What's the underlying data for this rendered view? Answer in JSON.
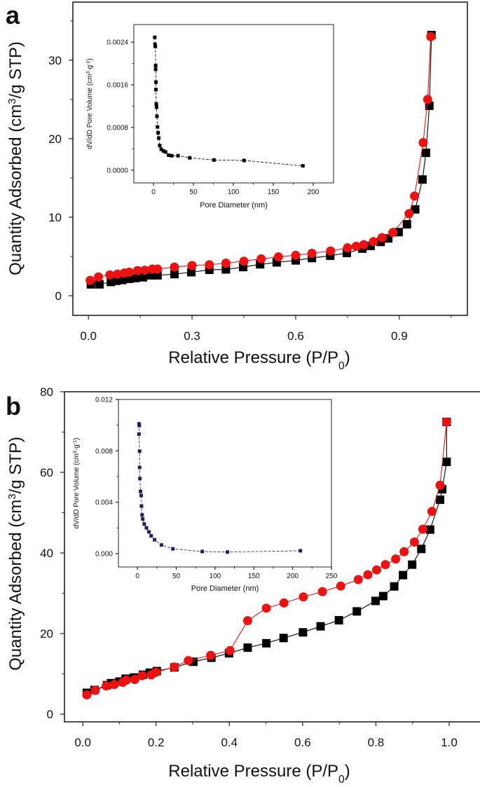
{
  "chart_data": [
    {
      "panel_label": "a",
      "type": "scatter",
      "xlabel": "Relative Pressure (P/P0)",
      "ylabel": "Quantity Adsorbed (cm3/g STP)",
      "xlim": [
        -0.045,
        1.097
      ],
      "ylim": [
        -2.5,
        37.4
      ],
      "xticks": [
        0.0,
        0.3,
        0.6,
        0.9
      ],
      "xtick_labels": [
        "0.0",
        "0.3",
        "0.6",
        "0.9"
      ],
      "yticks": [
        0,
        10,
        20,
        30
      ],
      "ytick_labels": [
        "0",
        "10",
        "20",
        "30"
      ],
      "xminor": [
        0.15,
        0.45,
        0.75,
        1.05
      ],
      "yminor": [
        5,
        15,
        25,
        35
      ],
      "grid": false,
      "series": [
        {
          "marker": "square",
          "color": "#000000",
          "x": [
            0.007,
            0.032,
            0.065,
            0.081,
            0.098,
            0.118,
            0.136,
            0.158,
            0.181,
            0.2,
            0.249,
            0.298,
            0.35,
            0.398,
            0.448,
            0.497,
            0.545,
            0.6,
            0.647,
            0.7,
            0.748,
            0.793,
            0.817,
            0.846,
            0.868,
            0.898,
            0.922,
            0.946,
            0.967,
            0.977,
            0.987,
            0.993
          ],
          "y": [
            1.45,
            1.45,
            1.75,
            1.9,
            2.0,
            2.15,
            2.25,
            2.35,
            2.6,
            2.6,
            2.75,
            3.0,
            3.3,
            3.35,
            3.65,
            4.0,
            4.25,
            4.5,
            4.8,
            5.1,
            5.45,
            6.0,
            6.35,
            6.85,
            7.3,
            8.1,
            9.1,
            11.0,
            14.8,
            18.2,
            24.2,
            33.2
          ]
        },
        {
          "marker": "circle",
          "color": "#ee1111",
          "x": [
            0.005,
            0.029,
            0.062,
            0.084,
            0.104,
            0.118,
            0.142,
            0.163,
            0.185,
            0.2,
            0.249,
            0.3,
            0.35,
            0.398,
            0.45,
            0.5,
            0.55,
            0.6,
            0.647,
            0.701,
            0.75,
            0.775,
            0.797,
            0.825,
            0.85,
            0.881,
            0.928,
            0.944,
            0.969,
            0.982,
            0.991
          ],
          "y": [
            1.95,
            2.4,
            2.65,
            2.75,
            2.9,
            3.0,
            3.2,
            3.25,
            3.4,
            3.4,
            3.65,
            3.85,
            3.95,
            4.15,
            4.4,
            4.7,
            4.95,
            5.15,
            5.4,
            5.7,
            6.1,
            6.3,
            6.5,
            6.9,
            7.4,
            8.05,
            10.45,
            12.7,
            19.5,
            25.0,
            33.0
          ]
        }
      ],
      "inset": {
        "type": "line",
        "xlabel": "Pore Diameter (nm)",
        "ylabel": "dV/dD Pore Volume (cm3·g-1)",
        "xlim": [
          -24.6,
          225.4
        ],
        "ylim": [
          -0.00024,
          0.00273
        ],
        "xticks": [
          0,
          50,
          100,
          150,
          200
        ],
        "xtick_labels": [
          "0",
          "50",
          "100",
          "150",
          "200"
        ],
        "yticks": [
          0,
          0.0008,
          0.0016,
          0.0024
        ],
        "ytick_labels": [
          "0.0000",
          "0.0008",
          "0.0016",
          "0.0024"
        ],
        "xminor": [
          25,
          75,
          125,
          175
        ],
        "yminor": [
          0.0004,
          0.0012,
          0.002
        ],
        "series": [
          {
            "marker": "square",
            "color": "#000000",
            "x": [
              1.6,
              1.9,
              2.3,
              2.7,
              2.7,
              3.1,
              3.1,
              3.5,
              3.9,
              4.3,
              5.0,
              5.8,
              6.6,
              7.8,
              9.7,
              12.4,
              15.1,
              19.0,
              22.9,
              30.7,
              45.4,
              75.7,
              113.4,
              187
            ],
            "y": [
              0.00249,
              0.00236,
              0.00232,
              0.00196,
              0.00189,
              0.00165,
              0.00151,
              0.00124,
              0.00118,
              0.00101,
              0.00081,
              0.0007,
              0.0006,
              0.00046,
              0.00039,
              0.00036,
              0.00034,
              0.00028,
              0.00027,
              0.00027,
              0.00023,
              0.00019,
              0.00018,
              8e-05
            ]
          }
        ]
      }
    },
    {
      "panel_label": "b",
      "type": "scatter",
      "xlabel": "Relative Pressure (P/P0)",
      "ylabel": "Quantity Adsorbed (cm3/g STP)",
      "xlim": [
        -0.05,
        1.0975
      ],
      "ylim": [
        -1.9,
        80
      ],
      "xticks": [
        0.0,
        0.2,
        0.4,
        0.6,
        0.8,
        1.0
      ],
      "xtick_labels": [
        "0.0",
        "0.2",
        "0.4",
        "0.6",
        "0.8",
        "1.0"
      ],
      "yticks": [
        0,
        20,
        40,
        60,
        80
      ],
      "ytick_labels": [
        "0",
        "20",
        "40",
        "60",
        "80"
      ],
      "xminor": [
        0.1,
        0.3,
        0.5,
        0.7,
        0.9,
        1.1
      ],
      "yminor": [
        10,
        30,
        50,
        70
      ],
      "grid": false,
      "series": [
        {
          "marker": "square",
          "color": "#000000",
          "x": [
            0.011,
            0.032,
            0.066,
            0.077,
            0.1,
            0.117,
            0.14,
            0.164,
            0.183,
            0.202,
            0.25,
            0.302,
            0.351,
            0.399,
            0.45,
            0.501,
            0.548,
            0.601,
            0.649,
            0.699,
            0.748,
            0.799,
            0.82,
            0.85,
            0.874,
            0.899,
            0.924,
            0.948,
            0.975,
            0.981,
            0.993,
            0.993
          ],
          "y": [
            5.3,
            6.0,
            7.2,
            7.7,
            8.1,
            8.8,
            9.1,
            9.8,
            10.3,
            10.7,
            11.6,
            13.0,
            14.0,
            15.1,
            16.5,
            17.6,
            18.9,
            20.3,
            21.8,
            23.3,
            25.5,
            28.1,
            29.3,
            31.7,
            34.5,
            37.1,
            41.0,
            45.8,
            53.2,
            55.8,
            62.6,
            72.5
          ]
        },
        {
          "marker": "circle",
          "color": "#ee1111",
          "x": [
            0.011,
            0.034,
            0.064,
            0.086,
            0.109,
            0.119,
            0.142,
            0.162,
            0.187,
            0.2,
            0.25,
            0.288,
            0.349,
            0.402,
            0.45,
            0.501,
            0.549,
            0.602,
            0.654,
            0.704,
            0.752,
            0.778,
            0.802,
            0.826,
            0.854,
            0.877,
            0.905,
            0.928,
            0.953,
            0.975,
            0.993
          ],
          "y": [
            4.8,
            5.9,
            7.0,
            7.35,
            7.9,
            8.45,
            8.6,
            9.55,
            9.75,
            10.4,
            11.7,
            13.3,
            14.6,
            15.8,
            23.2,
            26.3,
            27.6,
            29.1,
            30.4,
            31.8,
            33.4,
            34.6,
            35.8,
            37.1,
            38.5,
            40.3,
            42.7,
            45.9,
            50.3,
            56.8,
            72.5
          ]
        }
      ],
      "inset": {
        "type": "line",
        "xlabel": "Pore Diameter (nm)",
        "ylabel": "dV/dD Pore Volume (cm3·g-1)",
        "xlim": [
          -24.5,
          250
        ],
        "ylim": [
          -0.00104,
          0.012
        ],
        "xticks": [
          0,
          50,
          100,
          150,
          200,
          250
        ],
        "xtick_labels": [
          "0",
          "50",
          "100",
          "150",
          "200",
          "250"
        ],
        "yticks": [
          0,
          0.004,
          0.008,
          0.012
        ],
        "ytick_labels": [
          "0.000",
          "0.004",
          "0.008",
          "0.012"
        ],
        "xminor": [
          25,
          75,
          125,
          175,
          225
        ],
        "yminor": [
          0.002,
          0.006,
          0.01
        ],
        "series": [
          {
            "marker": "square",
            "color": "#2a1a5e",
            "x": [
              2.0,
              2.4,
              2.0,
              2.8,
              2.8,
              3.2,
              4.0,
              4.8,
              5.2,
              6.0,
              6.8,
              8.8,
              11.6,
              14.8,
              17.7,
              22.1,
              30.9,
              45.7,
              83.5,
              116,
              210
            ],
            "y": [
              0.0101,
              0.00997,
              0.0093,
              0.00797,
              0.00671,
              0.00584,
              0.00484,
              0.00452,
              0.0037,
              0.00301,
              0.0027,
              0.0023,
              0.002,
              0.00169,
              0.00138,
              0.00108,
              0.00067,
              0.00037,
              0.00016,
              0.00012,
              0.00022
            ]
          }
        ]
      }
    }
  ]
}
